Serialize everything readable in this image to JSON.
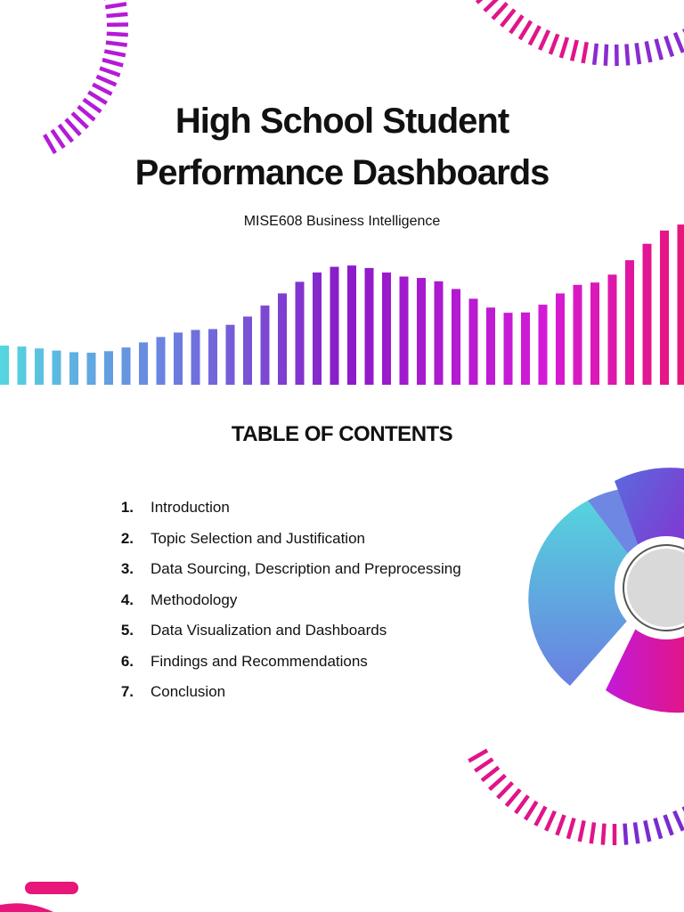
{
  "header": {
    "title_lines": [
      "High School Student",
      "Performance Dashboards"
    ],
    "subtitle": "MISE608 Business Intelligence"
  },
  "toc": {
    "heading": "TABLE OF CONTENTS",
    "items": [
      {
        "number": "1.",
        "text": "Introduction"
      },
      {
        "number": "2.",
        "text": "Topic Selection and Justification"
      },
      {
        "number": "3.",
        "text": "Data Sourcing, Description and Preprocessing"
      },
      {
        "number": "4.",
        "text": "Methodology"
      },
      {
        "number": "5.",
        "text": "Data Visualization and Dashboards"
      },
      {
        "number": "6.",
        "text": "Findings and Recommendations"
      },
      {
        "number": "7.",
        "text": "Conclusion"
      }
    ]
  }
}
